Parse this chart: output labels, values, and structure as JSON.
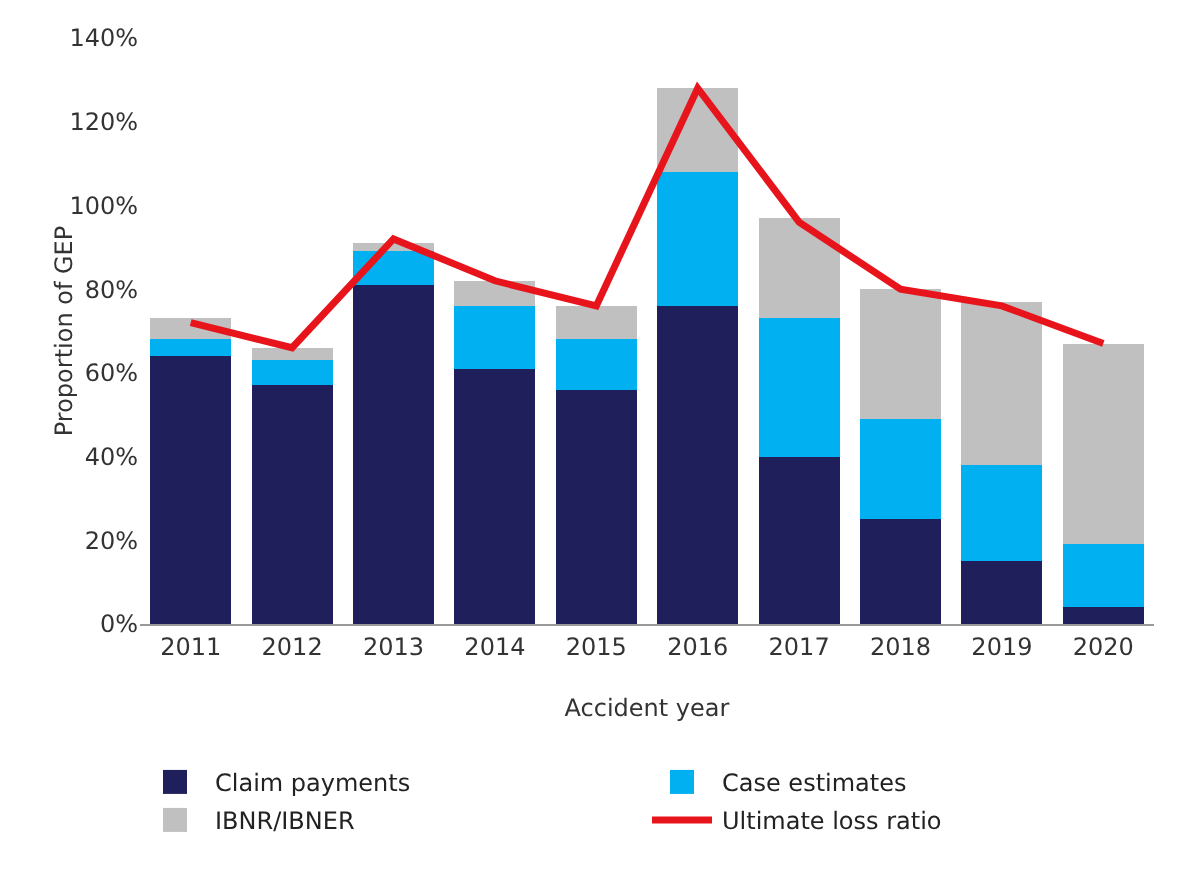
{
  "chart_data": {
    "type": "bar",
    "stacked": true,
    "xlabel": "Accident year",
    "ylabel": "Proportion of GEP",
    "categories": [
      "2011",
      "2012",
      "2013",
      "2014",
      "2015",
      "2016",
      "2017",
      "2018",
      "2019",
      "2020"
    ],
    "series": [
      {
        "name": "Claim payments",
        "color": "#1f1f5c",
        "values": [
          64,
          57,
          81,
          61,
          56,
          76,
          40,
          25,
          15,
          4
        ]
      },
      {
        "name": "Case estimates",
        "color": "#00b0f0",
        "values": [
          4,
          6,
          8,
          15,
          12,
          32,
          33,
          24,
          23,
          15
        ]
      },
      {
        "name": "IBNR/IBNER",
        "color": "#c0c0c0",
        "values": [
          5,
          3,
          2,
          6,
          8,
          20,
          24,
          31,
          39,
          48
        ]
      },
      {
        "name": "Ultimate loss ratio",
        "type": "line",
        "color": "#e8141c",
        "values": [
          72,
          66,
          92,
          82,
          76,
          128,
          96,
          80,
          76,
          67
        ]
      }
    ],
    "ylim": [
      0,
      140
    ],
    "yticks": [
      {
        "value": 0,
        "label": "0%"
      },
      {
        "value": 20,
        "label": "20%"
      },
      {
        "value": 40,
        "label": "40%"
      },
      {
        "value": 60,
        "label": "60%"
      },
      {
        "value": 80,
        "label": "80%"
      },
      {
        "value": 100,
        "label": "100%"
      },
      {
        "value": 120,
        "label": "120%"
      },
      {
        "value": 140,
        "label": "140%"
      }
    ],
    "grid": false,
    "legend": "bottom",
    "marker": "none",
    "line_style": "solid"
  }
}
